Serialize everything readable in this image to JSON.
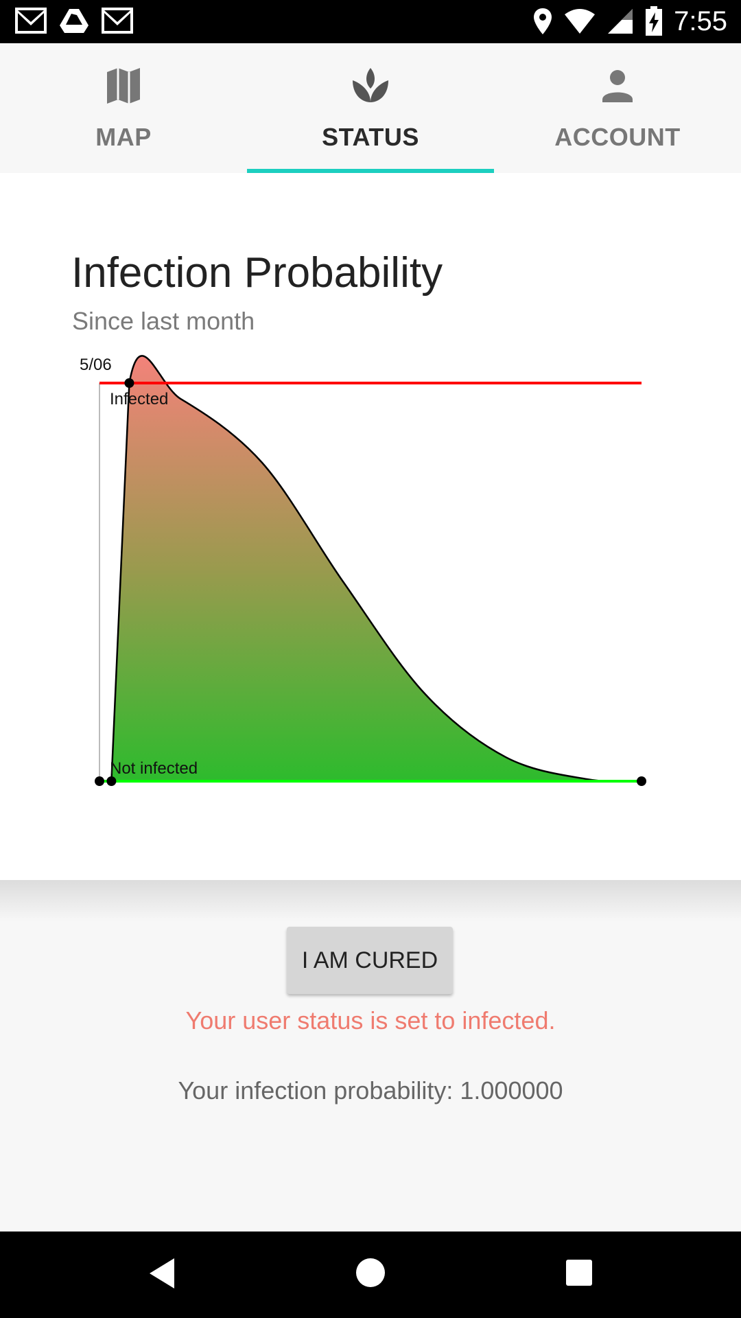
{
  "status_bar": {
    "time": "7:55",
    "left_icons": [
      "gmail-icon",
      "drive-icon",
      "gmail-icon"
    ],
    "right_icons": [
      "location-icon",
      "wifi-icon",
      "signal-icon",
      "battery-charging-icon"
    ]
  },
  "tabs": [
    {
      "label": "MAP",
      "icon": "map-icon",
      "active": false
    },
    {
      "label": "STATUS",
      "icon": "sprout-icon",
      "active": true
    },
    {
      "label": "ACCOUNT",
      "icon": "person-icon",
      "active": false
    }
  ],
  "colors": {
    "accent": "#1ccfc0",
    "infected_line": "#ff0000",
    "not_infected_line": "#00ff00",
    "fill_top": "#f3827a",
    "fill_bottom": "#2dbb2d",
    "status_message": "#ef7b6f"
  },
  "card": {
    "title": "Infection Probability",
    "subtitle": "Since last month"
  },
  "chart_data": {
    "type": "area",
    "title": "Infection Probability",
    "subtitle": "Since last month",
    "x_tick_label": "5/06",
    "series_labels": {
      "top": "Infected",
      "bottom": "Not infected"
    },
    "x": [
      0,
      0.022,
      0.055,
      0.15,
      0.3,
      0.45,
      0.6,
      0.75,
      0.9,
      1.0
    ],
    "y": [
      0,
      0,
      1.0,
      0.96,
      0.8,
      0.5,
      0.22,
      0.06,
      0.005,
      0
    ],
    "ylim": [
      0,
      1
    ]
  },
  "actions": {
    "cure_button": "I AM CURED"
  },
  "messages": {
    "status": "Your user status is set to infected.",
    "probability": "Your infection probability: 1.000000"
  },
  "nav_bar": [
    "back-icon",
    "home-icon",
    "recents-icon"
  ]
}
